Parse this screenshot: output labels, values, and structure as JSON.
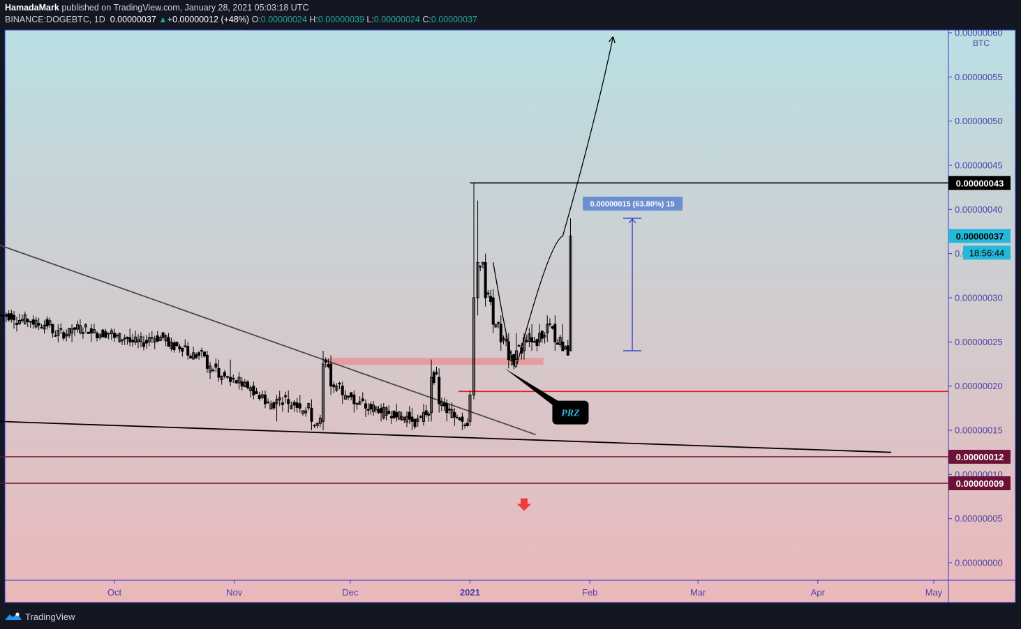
{
  "header": {
    "author": "HamadaMark",
    "published": "published on TradingView.com, January 28, 2021 05:03:18 UTC",
    "symbol": "BINANCE:DOGEBTC, 1D",
    "last": "0.00000037",
    "change_arrow": "▲",
    "change": "+0.00000012 (+48%)",
    "o_label": "O:",
    "o": "0.00000024",
    "h_label": "H:",
    "h": "0.00000039",
    "l_label": "L:",
    "l": "0.00000024",
    "c_label": "C:",
    "c": "0.00000037"
  },
  "footer": {
    "brand": "TradingView",
    "logo_icon": "tradingview-logo-icon"
  },
  "colors": {
    "background": "#131722",
    "plot_top": "#b9dfe3",
    "plot_bottom": "#ebb8ba",
    "axis": "#3138c8",
    "axis_text": "#4a3fa8",
    "candle": "#000000",
    "current_price_badge": "#24b9d9",
    "support_badge": "#6d1237",
    "red_line": "#ee1c1c",
    "prz_zone": "#e69598",
    "measure": "#2431c6",
    "measure_label_bg": "#6b8fd0"
  },
  "chart_data": {
    "type": "candlestick",
    "symbol": "DOGEBTC",
    "exchange": "BINANCE",
    "interval": "1D",
    "currency_label": "BTC",
    "x_labels": [
      "Oct",
      "Nov",
      "Dec",
      "2021",
      "Feb",
      "Mar",
      "Apr",
      "May"
    ],
    "y_ticks": [
      "0.00000060",
      "0.00000055",
      "0.00000050",
      "0.00000045",
      "0.00000040",
      "0.00000035",
      "0.00000030",
      "0.00000025",
      "0.00000020",
      "0.00000015",
      "0.00000010",
      "0.00000005",
      "0.00000000"
    ],
    "y_tick_values": [
      60,
      55,
      50,
      45,
      40,
      35,
      30,
      25,
      20,
      15,
      10,
      5,
      0
    ],
    "y_unit_note": "tick values in units of 1e-8 BTC",
    "ylim": [
      -2,
      61
    ],
    "x_start": "2020-09-01",
    "x_end": "2021-05-01",
    "candles_date_range": [
      "2020-09-01",
      "2021-01-28"
    ],
    "candles": [
      [
        "2020-09-01",
        28,
        28.5,
        27,
        28
      ],
      [
        "2020-09-05",
        28,
        28.5,
        26.5,
        27.5
      ],
      [
        "2020-09-10",
        27.5,
        28,
        26.5,
        27
      ],
      [
        "2020-09-15",
        27,
        27,
        25.5,
        26
      ],
      [
        "2020-09-20",
        26,
        27,
        25,
        26.5
      ],
      [
        "2020-09-25",
        26.5,
        27,
        25,
        26
      ],
      [
        "2020-10-01",
        26,
        26.5,
        25,
        25.5
      ],
      [
        "2020-10-05",
        25.5,
        26.5,
        24.5,
        25
      ],
      [
        "2020-10-10",
        25,
        26,
        24.5,
        25.5
      ],
      [
        "2020-10-15",
        25.5,
        26,
        24.5,
        24.5
      ],
      [
        "2020-10-20",
        24.5,
        25,
        23,
        23.5
      ],
      [
        "2020-10-25",
        23.5,
        24,
        21.5,
        22
      ],
      [
        "2020-10-28",
        22,
        23,
        20.5,
        21
      ],
      [
        "2020-10-31",
        21,
        23,
        20,
        20.5
      ],
      [
        "2020-11-03",
        20.5,
        21,
        19.5,
        20
      ],
      [
        "2020-11-06",
        20,
        20.5,
        18.5,
        19
      ],
      [
        "2020-11-09",
        19,
        19.5,
        17.5,
        18
      ],
      [
        "2020-11-12",
        18,
        19,
        16,
        18.5
      ],
      [
        "2020-11-15",
        18.5,
        19.5,
        17,
        18
      ],
      [
        "2020-11-18",
        18,
        19,
        17,
        17.5
      ],
      [
        "2020-11-21",
        17.5,
        18.5,
        15,
        16
      ],
      [
        "2020-11-24",
        16,
        24,
        15,
        22.5
      ],
      [
        "2020-11-26",
        22.5,
        23.5,
        19,
        20
      ],
      [
        "2020-11-29",
        20,
        20.5,
        18,
        19
      ],
      [
        "2020-12-02",
        19,
        19.5,
        17,
        18
      ],
      [
        "2020-12-05",
        18,
        18.5,
        16.5,
        17.5
      ],
      [
        "2020-12-09",
        17.5,
        18,
        16,
        17
      ],
      [
        "2020-12-13",
        17,
        18,
        16,
        16.5
      ],
      [
        "2020-12-17",
        16.5,
        17.5,
        15,
        16
      ],
      [
        "2020-12-20",
        16,
        18,
        15.5,
        17
      ],
      [
        "2020-12-22",
        17,
        23,
        16,
        21
      ],
      [
        "2020-12-24",
        21,
        22,
        17,
        18
      ],
      [
        "2020-12-26",
        18,
        18.5,
        16,
        17
      ],
      [
        "2020-12-28",
        17,
        17.5,
        15.5,
        16.5
      ],
      [
        "2020-12-30",
        16.5,
        17,
        15,
        16
      ],
      [
        "2021-01-01",
        16,
        19.5,
        15.5,
        19
      ],
      [
        "2021-01-02",
        19,
        43,
        18.5,
        30
      ],
      [
        "2021-01-03",
        30,
        41,
        28,
        34
      ],
      [
        "2021-01-05",
        34,
        35,
        29,
        30
      ],
      [
        "2021-01-07",
        30,
        31,
        26,
        27
      ],
      [
        "2021-01-09",
        27,
        28,
        24,
        25
      ],
      [
        "2021-01-11",
        25,
        26,
        22,
        23
      ],
      [
        "2021-01-13",
        23,
        26,
        22.5,
        24
      ],
      [
        "2021-01-15",
        24,
        26,
        23,
        25.5
      ],
      [
        "2021-01-17",
        25.5,
        27,
        24,
        25
      ],
      [
        "2021-01-19",
        25,
        27,
        24.5,
        26
      ],
      [
        "2021-01-21",
        26,
        28,
        25,
        27
      ],
      [
        "2021-01-23",
        27,
        28,
        24,
        25
      ],
      [
        "2021-01-25",
        25,
        27,
        24,
        24
      ],
      [
        "2021-01-27",
        24,
        39,
        24,
        37
      ]
    ],
    "trendlines": [
      {
        "from": [
          "2020-09-01",
          36
        ],
        "to": [
          "2021-01-18",
          14.5
        ],
        "color": "#4a4a4a"
      },
      {
        "from": [
          "2020-09-01",
          16
        ],
        "to": [
          "2021-04-20",
          12.5
        ],
        "color": "#000000"
      }
    ],
    "horizontal_lines": [
      {
        "price_label": "0.00000043",
        "value": 43,
        "from": "2021-01-01",
        "color": "#000000",
        "badge_bg": "#000000"
      },
      {
        "price_label": "0.00000012",
        "value": 12,
        "from": "2020-09-01",
        "color": "#6d1237",
        "badge_bg": "#6d1237"
      },
      {
        "price_label": "0.00000009",
        "value": 9,
        "from": "2020-09-01",
        "color": "#6d1237",
        "badge_bg": "#6d1237"
      },
      {
        "value": 19.4,
        "from": "2020-12-29",
        "color": "#ee1c1c"
      }
    ],
    "zone": {
      "from": "2020-11-25",
      "to": "2021-01-20",
      "top": 23.2,
      "bottom": 22.5,
      "color": "#e69598"
    },
    "curve_arrow": {
      "points": [
        [
          "2021-01-07",
          34
        ],
        [
          "2021-01-13",
          22.2
        ],
        [
          "2021-01-25",
          37
        ],
        [
          "2021-02-07",
          59.5
        ]
      ],
      "color": "#000000"
    },
    "measure": {
      "label": "0.00000015 (63.80%) 15",
      "from_value": 24,
      "to_value": 39,
      "x": "2021-02-12"
    },
    "callout": {
      "text": "PRZ",
      "anchor": [
        "2021-01-10",
        22
      ],
      "box_at": [
        "2021-01-27",
        17
      ]
    },
    "down_arrow": {
      "at": [
        "2021-01-15",
        6.5
      ],
      "color": "#ef3b3b"
    },
    "current_price": {
      "label": "0.00000037",
      "value": 37,
      "countdown": "18:56:44"
    }
  }
}
